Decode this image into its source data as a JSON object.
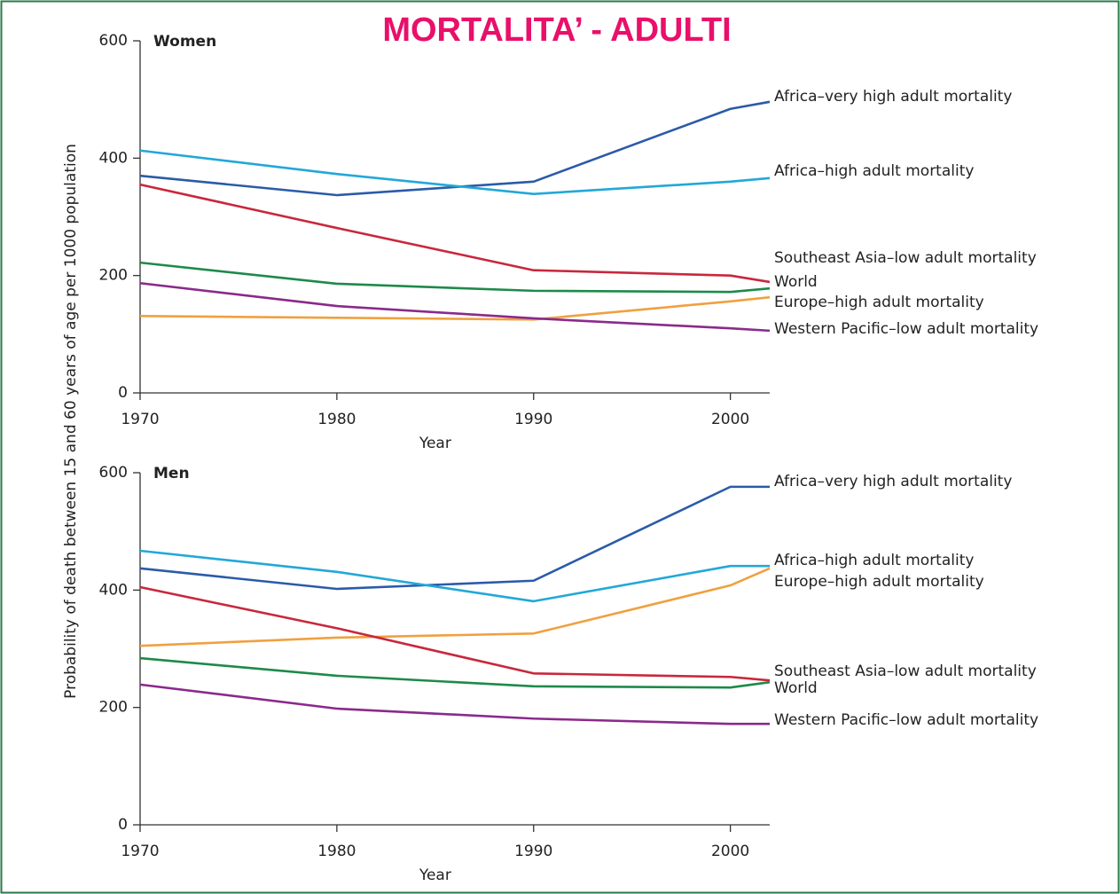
{
  "title": "MORTALITA’ - ADULTI",
  "ylabel": "Probability of death between 15 and 60 years of age per 1000 population",
  "chart_data": [
    {
      "type": "line",
      "subtitle": "Women",
      "xlabel": "Year",
      "x": [
        1970,
        1980,
        1990,
        2000,
        2002
      ],
      "xlim": [
        1970,
        2002
      ],
      "xticks": [
        1970,
        1980,
        1990,
        2000
      ],
      "ylim": [
        0,
        600
      ],
      "yticks": [
        0,
        200,
        400,
        600
      ],
      "series": [
        {
          "name": "Africa–very high adult mortality",
          "color": "#2b5ba8",
          "values": [
            370,
            337,
            360,
            484,
            496
          ]
        },
        {
          "name": "Africa–high adult mortality",
          "color": "#22a8d8",
          "values": [
            413,
            373,
            339,
            360,
            366
          ]
        },
        {
          "name": "Southeast Asia–low adult mortality",
          "color": "#1e8a4a",
          "values": [
            222,
            186,
            174,
            172,
            178
          ]
        },
        {
          "name": "World",
          "color": "#c8283c",
          "values": [
            355,
            281,
            209,
            200,
            189
          ]
        },
        {
          "name": "Europe–high adult mortality",
          "color": "#f0a040",
          "values": [
            131,
            128,
            125,
            156,
            163
          ]
        },
        {
          "name": "Western Pacific–low adult mortality",
          "color": "#8a2a8a",
          "values": [
            187,
            148,
            127,
            110,
            106
          ]
        }
      ]
    },
    {
      "type": "line",
      "subtitle": "Men",
      "xlabel": "Year",
      "x": [
        1970,
        1980,
        1990,
        2000,
        2002
      ],
      "xlim": [
        1970,
        2002
      ],
      "xticks": [
        1970,
        1980,
        1990,
        2000
      ],
      "ylim": [
        0,
        600
      ],
      "yticks": [
        0,
        200,
        400,
        600
      ],
      "series": [
        {
          "name": "Africa–very high adult mortality",
          "color": "#2b5ba8",
          "values": [
            437,
            402,
            416,
            576,
            576
          ]
        },
        {
          "name": "Africa–high adult mortality",
          "color": "#22a8d8",
          "values": [
            467,
            431,
            381,
            441,
            441
          ]
        },
        {
          "name": "Europe–high adult mortality",
          "color": "#f0a040",
          "values": [
            305,
            319,
            326,
            408,
            437
          ]
        },
        {
          "name": "Southeast Asia–low adult mortality",
          "color": "#1e8a4a",
          "values": [
            284,
            254,
            236,
            234,
            243
          ]
        },
        {
          "name": "World",
          "color": "#c8283c",
          "values": [
            405,
            335,
            258,
            252,
            246
          ]
        },
        {
          "name": "Western Pacific–low adult mortality",
          "color": "#8a2a8a",
          "values": [
            239,
            198,
            181,
            172,
            172
          ]
        }
      ]
    }
  ]
}
